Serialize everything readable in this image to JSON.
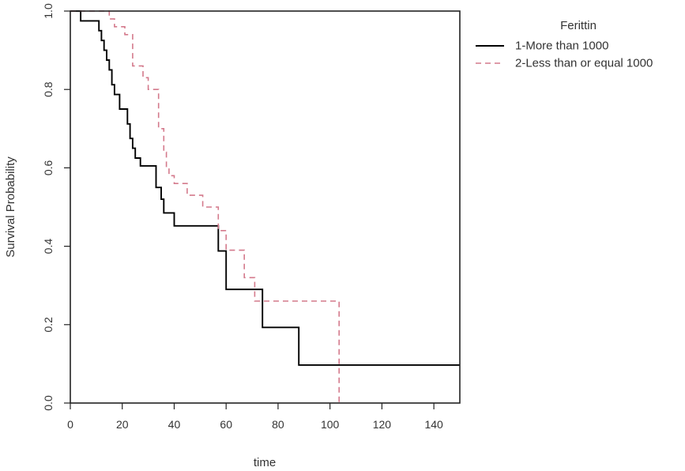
{
  "chart_data": {
    "type": "line",
    "subtype": "step",
    "xlabel": "time",
    "ylabel": "Survival Probability",
    "xlim": [
      0,
      150
    ],
    "ylim": [
      0,
      1
    ],
    "xticks": [
      0,
      20,
      40,
      60,
      80,
      100,
      120,
      140
    ],
    "yticks": [
      0.0,
      0.2,
      0.4,
      0.6,
      0.8,
      1.0
    ],
    "ytick_labels": [
      "0.0",
      "0.2",
      "0.4",
      "0.6",
      "0.8",
      "1.0"
    ],
    "grid": false,
    "legend": {
      "title": "Ferittin",
      "placement": "right"
    },
    "series": [
      {
        "name": "1-More than 1000",
        "color": "#000000",
        "linestyle": "solid",
        "x": [
          0,
          4,
          11,
          12,
          13,
          14,
          15,
          16,
          17,
          19,
          22,
          23,
          24,
          25,
          26,
          27,
          28,
          33,
          35,
          36,
          40,
          57,
          60,
          74,
          88,
          150
        ],
        "y": [
          1.0,
          0.975,
          0.95,
          0.925,
          0.9,
          0.875,
          0.85,
          0.812,
          0.787,
          0.75,
          0.712,
          0.675,
          0.65,
          0.625,
          0.625,
          0.605,
          0.605,
          0.55,
          0.52,
          0.485,
          0.452,
          0.388,
          0.29,
          0.193,
          0.097,
          0.097
        ]
      },
      {
        "name": "2-Less than or equal 1000",
        "color": "#D47A8C",
        "linestyle": "dashed",
        "x": [
          0,
          15,
          17,
          21,
          24,
          28,
          30,
          34,
          36,
          37,
          38,
          40,
          45,
          51,
          57,
          60,
          67,
          71,
          103,
          103.5
        ],
        "y": [
          1.0,
          0.98,
          0.96,
          0.94,
          0.86,
          0.83,
          0.8,
          0.7,
          0.64,
          0.6,
          0.58,
          0.56,
          0.53,
          0.5,
          0.44,
          0.39,
          0.32,
          0.26,
          0.26,
          0.0
        ]
      }
    ]
  }
}
